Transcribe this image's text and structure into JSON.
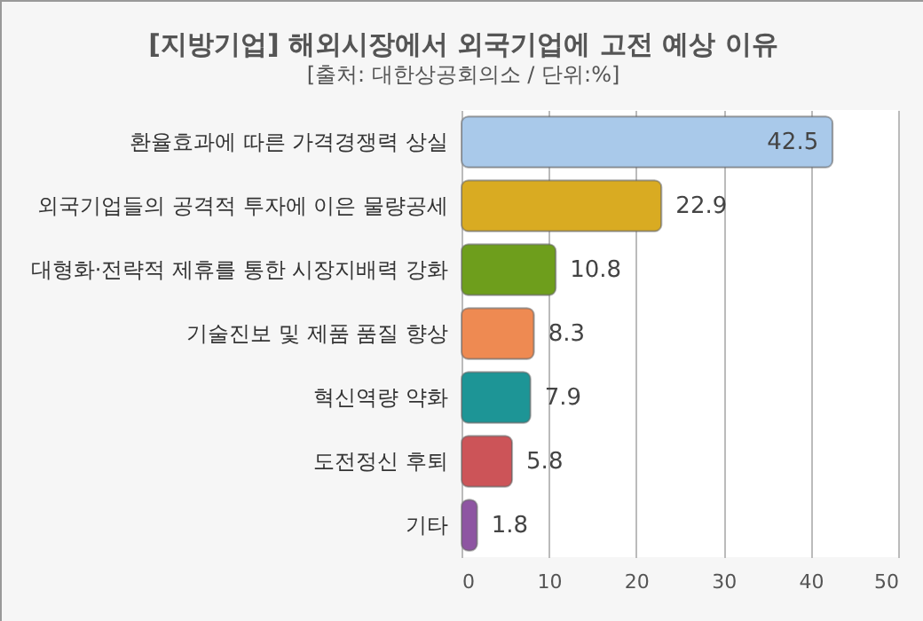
{
  "chart_data": {
    "type": "bar",
    "orientation": "horizontal",
    "title": "[지방기업] 해외시장에서 외국기업에 고전 예상 이유",
    "subtitle": "[출처: 대한상공회의소 / 단위:%]",
    "categories": [
      "환율효과에 따른 가격경쟁력 상실",
      "외국기업들의 공격적 투자에 이은 물량공세",
      "대형화·전략적 제휴를 통한 시장지배력 강화",
      "기술진보 및 제품 품질 향상",
      "혁신역량 약화",
      "도전정신 후퇴",
      "기타"
    ],
    "values": [
      42.5,
      22.9,
      10.8,
      8.3,
      7.9,
      5.8,
      1.8
    ],
    "colors": [
      "#a9c9ea",
      "#d9ab22",
      "#6e9e1c",
      "#ee8a52",
      "#1d9596",
      "#cc5458",
      "#8e55a2"
    ],
    "xlim": [
      0,
      50
    ],
    "xticks": [
      0,
      10,
      20,
      30,
      40,
      50
    ],
    "grid": "x",
    "data_labels": true
  }
}
